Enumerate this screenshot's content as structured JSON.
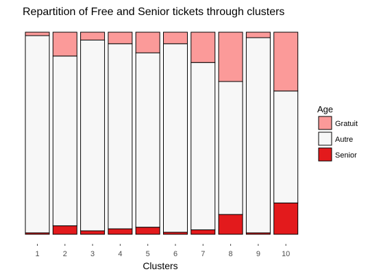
{
  "chart_data": {
    "type": "bar",
    "stacked": true,
    "normalized": true,
    "title": "Repartition of Free and Senior tickets through clusters",
    "xlabel": "Clusters",
    "ylabel": "",
    "ylim": [
      0,
      1
    ],
    "grid": false,
    "categories": [
      "1",
      "2",
      "3",
      "4",
      "5",
      "6",
      "7",
      "8",
      "9",
      "10"
    ],
    "legend": {
      "title": "Age",
      "placement": "right",
      "entries": [
        "Gratuit",
        "Autre",
        "Senior"
      ]
    },
    "series": [
      {
        "name": "Senior",
        "color": "#e31a1c",
        "values": [
          0.007,
          0.042,
          0.017,
          0.027,
          0.035,
          0.01,
          0.022,
          0.098,
          0.007,
          0.155
        ]
      },
      {
        "name": "Autre",
        "color": "#f7f7f7",
        "values": [
          0.976,
          0.84,
          0.944,
          0.916,
          0.863,
          0.933,
          0.828,
          0.658,
          0.966,
          0.554
        ]
      },
      {
        "name": "Gratuit",
        "color": "#fb9a99",
        "values": [
          0.017,
          0.118,
          0.039,
          0.057,
          0.102,
          0.057,
          0.15,
          0.244,
          0.027,
          0.291
        ]
      }
    ]
  }
}
